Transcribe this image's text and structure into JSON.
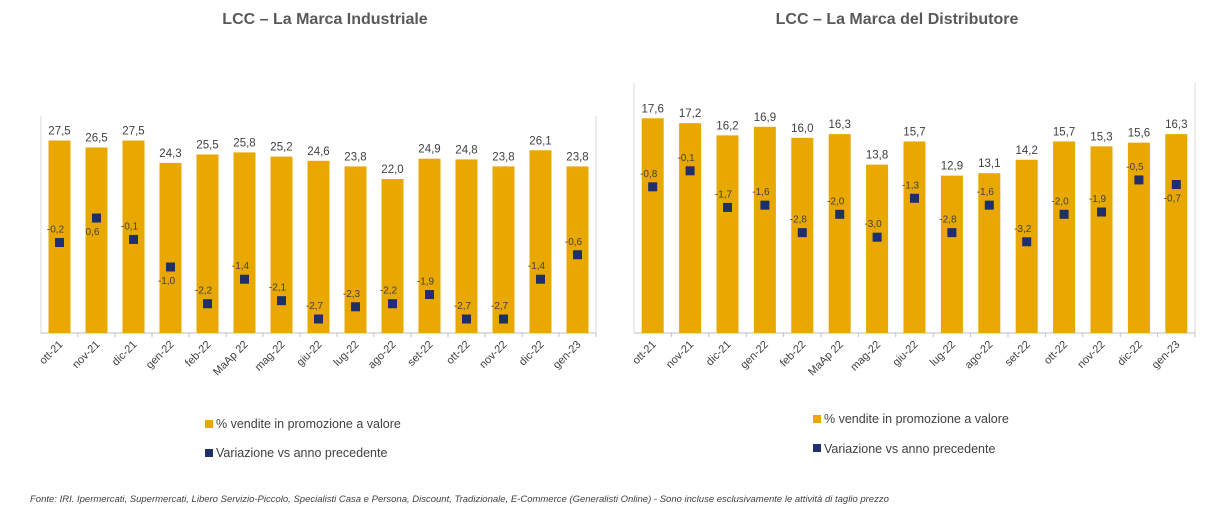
{
  "colors": {
    "bar": "#E8A800",
    "marker": "#1F2F6B",
    "negative_highlight": "#E00000",
    "text": "#404040",
    "title": "#595959"
  },
  "legend": {
    "bar": "% vendite in promozione a valore",
    "marker": "Variazione vs anno precedente"
  },
  "footer": "Fonte: IRI. Ipermercati, Supermercati, Libero Servizio-Piccolo, Specialisti Casa e Persona, Discount, Tradizionale, E-Commerce (Generalisti Online) - Sono incluse esclusivamente le attività di taglio prezzo",
  "chart_data": [
    {
      "type": "bar",
      "title": "LCC – La Marca Industriale",
      "categories": [
        "ott-21",
        "nov-21",
        "dic-21",
        "gen-22",
        "feb-22",
        "MaAp 22",
        "mag-22",
        "giu-22",
        "lug-22",
        "ago-22",
        "set-22",
        "ott-22",
        "nov-22",
        "dic-22",
        "gen-23"
      ],
      "series": [
        {
          "name": "% vendite in promozione a valore",
          "kind": "bar",
          "values": [
            27.5,
            26.5,
            27.5,
            24.3,
            25.5,
            25.8,
            25.2,
            24.6,
            23.8,
            22.0,
            24.9,
            24.8,
            23.8,
            26.1,
            23.8
          ],
          "labels": [
            "27,5",
            "26,5",
            "27,5",
            "24,3",
            "25,5",
            "25,8",
            "25,2",
            "24,6",
            "23,8",
            "22,0",
            "24,9",
            "24,8",
            "23,8",
            "26,1",
            "23,8"
          ]
        },
        {
          "name": "Variazione vs anno precedente",
          "kind": "marker",
          "values": [
            -0.2,
            0.6,
            -0.1,
            -1.0,
            -2.2,
            -1.4,
            -2.1,
            -2.7,
            -2.3,
            -2.2,
            -1.9,
            -2.7,
            -2.7,
            -1.4,
            -0.6
          ],
          "labels": [
            "-0,2",
            "0,6",
            "-0,1",
            "-1,0",
            "-2,2",
            "-1,4",
            "-2,1",
            "-2,7",
            "-2,3",
            "-2,2",
            "-1,9",
            "-2,7",
            "-2,7",
            "-1,4",
            "-0,6"
          ],
          "label_below": [
            false,
            true,
            false,
            true,
            false,
            false,
            false,
            false,
            false,
            false,
            false,
            false,
            false,
            false,
            false
          ],
          "highlight": []
        }
      ]
    },
    {
      "type": "bar",
      "title": "LCC – La Marca del Distributore",
      "categories": [
        "ott-21",
        "nov-21",
        "dic-21",
        "gen-22",
        "feb-22",
        "MaAp 22",
        "mag-22",
        "giu-22",
        "lug-22",
        "ago-22",
        "set-22",
        "ott-22",
        "nov-22",
        "dic-22",
        "gen-23"
      ],
      "series": [
        {
          "name": "% vendite in promozione a valore",
          "kind": "bar",
          "values": [
            17.6,
            17.2,
            16.2,
            16.9,
            16.0,
            16.3,
            13.8,
            15.7,
            12.9,
            13.1,
            14.2,
            15.7,
            15.3,
            15.6,
            16.3
          ],
          "labels": [
            "17,6",
            "17,2",
            "16,2",
            "16,9",
            "16,0",
            "16,3",
            "13,8",
            "15,7",
            "12,9",
            "13,1",
            "14,2",
            "15,7",
            "15,3",
            "15,6",
            "16,3"
          ]
        },
        {
          "name": "Variazione vs anno precedente",
          "kind": "marker",
          "values": [
            -0.8,
            -0.1,
            -1.7,
            -1.6,
            -2.8,
            -2.0,
            -3.0,
            -1.3,
            -2.8,
            -1.6,
            -3.2,
            -2.0,
            -1.9,
            -0.5,
            -0.7
          ],
          "labels": [
            "-0,8",
            "-0,1",
            "-1,7",
            "-1,6",
            "-2,8",
            "-2,0",
            "-3,0",
            "-1,3",
            "-2,8",
            "-1,6",
            "-3,2",
            "-2,0",
            "-1,9",
            "-0,5",
            "-0,7"
          ],
          "label_below": [
            false,
            false,
            false,
            false,
            false,
            false,
            false,
            false,
            false,
            false,
            false,
            false,
            false,
            false,
            true
          ],
          "highlight": [
            5
          ]
        }
      ]
    }
  ]
}
